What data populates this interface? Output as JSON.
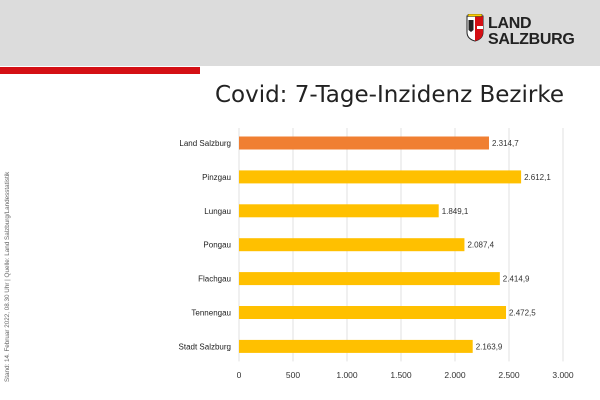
{
  "header": {
    "logo_line1": "LAND",
    "logo_line2": "SALZBURG"
  },
  "colors": {
    "header_bg": "#dcdcdc",
    "accent_red": "#d40f14",
    "bar_total": "#f07f32",
    "bar_district": "#ffc000",
    "grid": "#d9d9d9"
  },
  "title": "Covid: 7-Tage-Inzidenz Bezirke",
  "side_note": "Stand: 14. Februar  2022, 08.30 Uhr  |  Quelle: Land Salzburg/Landesstatistik",
  "chart_data": {
    "type": "bar",
    "orientation": "horizontal",
    "categories": [
      "Land Salzburg",
      "Pinzgau",
      "Lungau",
      "Pongau",
      "Flachgau",
      "Tennengau",
      "Stadt Salzburg"
    ],
    "values": [
      2314.7,
      2612.1,
      1849.1,
      2087.4,
      2414.9,
      2472.5,
      2163.9
    ],
    "value_labels": [
      "2.314,7",
      "2.612,1",
      "1.849,1",
      "2.087,4",
      "2.414,9",
      "2.472,5",
      "2.163,9"
    ],
    "bar_colors": [
      "#f07f32",
      "#ffc000",
      "#ffc000",
      "#ffc000",
      "#ffc000",
      "#ffc000",
      "#ffc000"
    ],
    "xlim": [
      0,
      3000
    ],
    "ticks": [
      0,
      500,
      1000,
      1500,
      2000,
      2500,
      3000
    ],
    "tick_labels": [
      "0",
      "500",
      "1.000",
      "1.500",
      "2.000",
      "2.500",
      "3.000"
    ],
    "grid": true,
    "legend": "none"
  }
}
